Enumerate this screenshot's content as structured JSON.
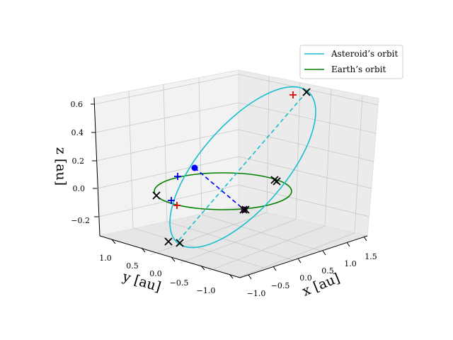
{
  "chart_data": {
    "type": "line",
    "projection": "3d",
    "xlabel": "x [au]",
    "ylabel": "y [au]",
    "zlabel": "z [au]",
    "xlim": [
      -1.2,
      1.7
    ],
    "ylim": [
      -1.3,
      1.3
    ],
    "zlim": [
      -0.3,
      0.65
    ],
    "x_ticks": [
      "−1.0",
      "−0.5",
      "0.0",
      "0.5",
      "1.0",
      "1.5"
    ],
    "y_ticks": [
      "1.0",
      "0.5",
      "0.0",
      "−0.5",
      "−1.0"
    ],
    "z_ticks": [
      "0.6",
      "0.4",
      "0.2",
      "0.0",
      "−0.2"
    ],
    "grid": true,
    "legend_position": "top-right",
    "series": [
      {
        "name": "Asteroid's orbit",
        "color": "#17becf",
        "style": "solid",
        "kind": "ellipse",
        "a": 1.3,
        "e": 0.22,
        "inclination_deg": 24,
        "ascending_node_x": 1.0
      },
      {
        "name": "Earth's orbit",
        "color": "#008000",
        "style": "solid",
        "kind": "circle",
        "radius": 1.0
      }
    ],
    "lines": [
      {
        "color": "#17becf",
        "style": "dashed",
        "from": "aphelion",
        "to": "perihelion"
      },
      {
        "color": "#0000ff",
        "style": "dashed",
        "from": [
          -0.05,
          0.9,
          0.15
        ],
        "to": [
          0.0,
          -0.95,
          0.0
        ]
      }
    ],
    "markers": [
      {
        "symbol": "circle",
        "color": "#0000ff",
        "at": [
          -0.05,
          0.9,
          0.15
        ]
      },
      {
        "symbol": "circle",
        "color": "#800080",
        "at": [
          0.0,
          -0.95,
          0.0
        ]
      }
    ],
    "cross_markers": 8,
    "red_plus_markers": 2,
    "blue_plus_markers": 2
  },
  "legend": {
    "items": [
      {
        "label": "Asteroid’s orbit",
        "color": "#17becf"
      },
      {
        "label": "Earth’s orbit",
        "color": "#008000"
      }
    ]
  }
}
